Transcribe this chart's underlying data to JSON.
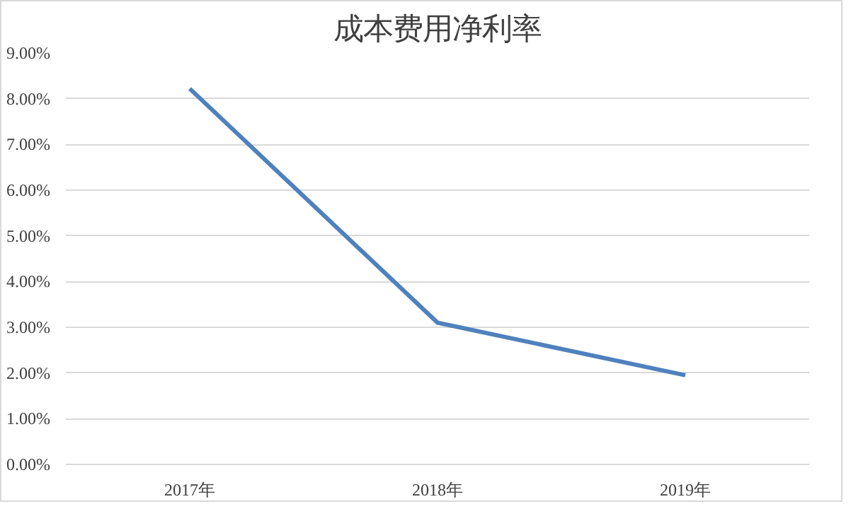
{
  "chart_data": {
    "type": "line",
    "title": "成本费用净利率",
    "categories": [
      "2017年",
      "2018年",
      "2019年"
    ],
    "series": [
      {
        "color": "#4f81bd",
        "values": [
          8.22,
          3.1,
          1.95
        ]
      }
    ],
    "ylim": [
      0,
      9
    ],
    "yticks": [
      {
        "value": 0,
        "label": "0.00%"
      },
      {
        "value": 1,
        "label": "1.00%"
      },
      {
        "value": 2,
        "label": "2.00%"
      },
      {
        "value": 3,
        "label": "3.00%"
      },
      {
        "value": 4,
        "label": "4.00%"
      },
      {
        "value": 5,
        "label": "5.00%"
      },
      {
        "value": 6,
        "label": "6.00%"
      },
      {
        "value": 7,
        "label": "7.00%"
      },
      {
        "value": 8,
        "label": "8.00%"
      },
      {
        "value": 9,
        "label": "9.00%"
      }
    ],
    "grid": "y",
    "marker": "none",
    "line_style": "solid"
  }
}
